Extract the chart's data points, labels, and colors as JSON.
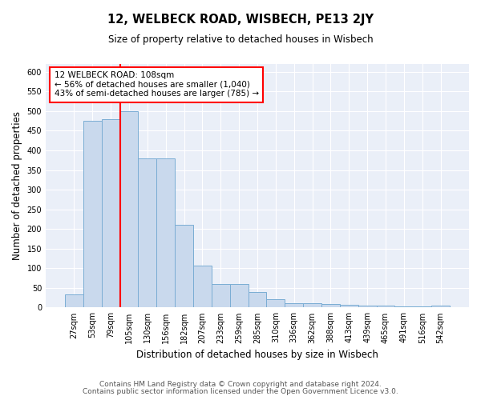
{
  "title": "12, WELBECK ROAD, WISBECH, PE13 2JY",
  "subtitle": "Size of property relative to detached houses in Wisbech",
  "xlabel": "Distribution of detached houses by size in Wisbech",
  "ylabel": "Number of detached properties",
  "categories": [
    "27sqm",
    "53sqm",
    "79sqm",
    "105sqm",
    "130sqm",
    "156sqm",
    "182sqm",
    "207sqm",
    "233sqm",
    "259sqm",
    "285sqm",
    "310sqm",
    "336sqm",
    "362sqm",
    "388sqm",
    "413sqm",
    "439sqm",
    "465sqm",
    "491sqm",
    "516sqm",
    "542sqm"
  ],
  "values": [
    33,
    475,
    480,
    500,
    380,
    380,
    210,
    107,
    60,
    60,
    40,
    22,
    12,
    11,
    10,
    7,
    5,
    5,
    3,
    3,
    5
  ],
  "bar_color": "#c9d9ed",
  "bar_edge_color": "#7aadd4",
  "annotation_line1": "12 WELBECK ROAD: 108sqm",
  "annotation_line2": "← 56% of detached houses are smaller (1,040)",
  "annotation_line3": "43% of semi-detached houses are larger (785) →",
  "ylim": [
    0,
    620
  ],
  "yticks": [
    0,
    50,
    100,
    150,
    200,
    250,
    300,
    350,
    400,
    450,
    500,
    550,
    600
  ],
  "bg_color": "#eaeff8",
  "footnote1": "Contains HM Land Registry data © Crown copyright and database right 2024.",
  "footnote2": "Contains public sector information licensed under the Open Government Licence v3.0."
}
